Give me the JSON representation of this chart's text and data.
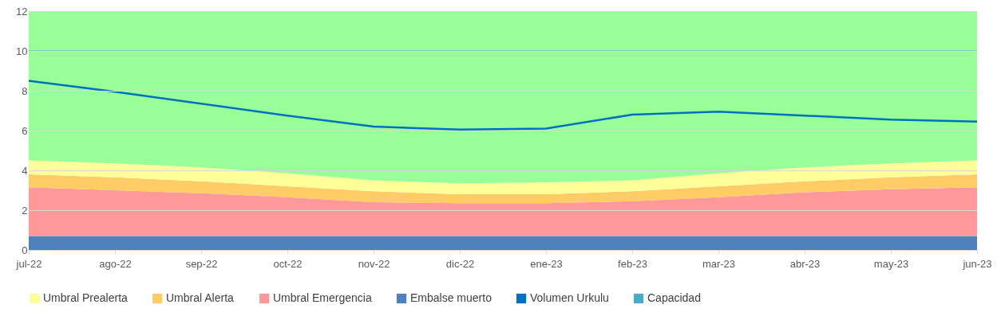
{
  "chart_data": {
    "type": "area",
    "stacked": true,
    "categories": [
      "jul-22",
      "ago-22",
      "sep-22",
      "oct-22",
      "nov-22",
      "dic-22",
      "ene-23",
      "feb-23",
      "mar-23",
      "abr-23",
      "may-23",
      "jun-23"
    ],
    "series": [
      {
        "name": "Embalse muerto",
        "color": "#4f81bd",
        "values": [
          0.7,
          0.7,
          0.7,
          0.7,
          0.7,
          0.7,
          0.7,
          0.7,
          0.7,
          0.7,
          0.7,
          0.7
        ]
      },
      {
        "name": "Umbral Emergencia",
        "color": "#ff9999",
        "values": [
          2.45,
          2.3,
          2.15,
          1.95,
          1.7,
          1.65,
          1.65,
          1.75,
          1.95,
          2.2,
          2.35,
          2.45
        ]
      },
      {
        "name": "Umbral Alerta",
        "color": "#ffcc66",
        "values": [
          0.65,
          0.65,
          0.6,
          0.55,
          0.55,
          0.45,
          0.45,
          0.5,
          0.55,
          0.55,
          0.6,
          0.65
        ]
      },
      {
        "name": "Umbral Prealerta",
        "color": "#ffff99",
        "values": [
          0.7,
          0.7,
          0.7,
          0.65,
          0.55,
          0.55,
          0.6,
          0.55,
          0.65,
          0.7,
          0.7,
          0.7
        ]
      },
      {
        "color": "#99ff99",
        "values": [
          7.5,
          7.65,
          7.85,
          8.15,
          8.5,
          8.65,
          8.6,
          8.5,
          8.15,
          7.85,
          7.65,
          7.5
        ]
      },
      {
        "name": "Volumen Urkulu",
        "type": "line",
        "color": "#0070c0",
        "values": [
          8.5,
          7.95,
          7.35,
          6.75,
          6.2,
          6.05,
          6.1,
          6.8,
          6.95,
          6.75,
          6.55,
          6.45
        ]
      },
      {
        "name": "Capacidad",
        "type": "line",
        "color": "#4bacc6",
        "values": [
          10,
          10,
          10,
          10,
          10,
          10,
          10,
          10,
          10,
          10,
          10,
          10
        ]
      }
    ],
    "ylim": [
      0,
      12
    ],
    "yticks": [
      0,
      2,
      4,
      6,
      8,
      10,
      12
    ],
    "grid": "y",
    "legend": "bottom"
  }
}
